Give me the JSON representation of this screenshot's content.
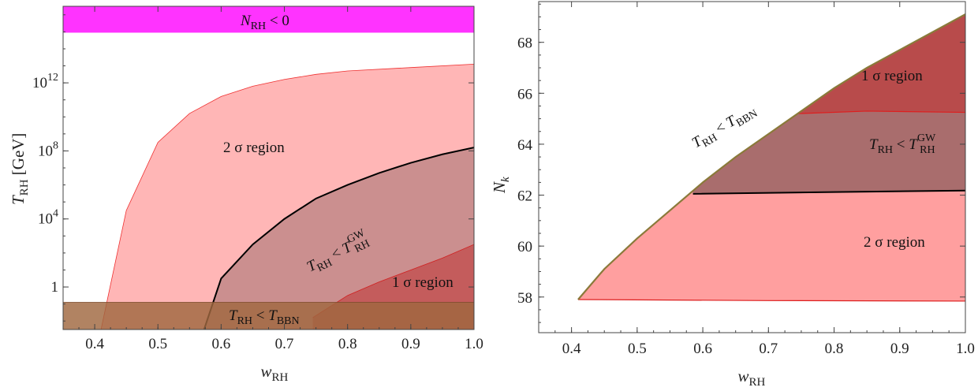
{
  "colors": {
    "two_sigma": "#ff9a9a",
    "one_sigma": "#b84a4a",
    "gw": "#a46a6a",
    "bbn": "#a0683f",
    "magenta": "#ff33ff"
  },
  "chart_data": [
    {
      "type": "area",
      "scale": "log-y",
      "xlabel": "w",
      "xlabel_sub": "RH",
      "ylabel": "T",
      "ylabel_sub": "RH",
      "ylabel_unit": "[GeV]",
      "xlim": [
        0.35,
        1.0
      ],
      "ylim_log10": [
        -2.5,
        16.5
      ],
      "x_ticks": [
        "0.4",
        "0.5",
        "0.6",
        "0.7",
        "0.8",
        "0.9",
        "1.0"
      ],
      "x_tick_values": [
        0.4,
        0.5,
        0.6,
        0.7,
        0.8,
        0.9,
        1.0
      ],
      "y_ticks": [
        {
          "value_log10": 0,
          "base": "1",
          "exp": ""
        },
        {
          "value_log10": 4,
          "base": "10",
          "exp": "4"
        },
        {
          "value_log10": 8,
          "base": "10",
          "exp": "8"
        },
        {
          "value_log10": 12,
          "base": "10",
          "exp": "12"
        }
      ],
      "series": [
        {
          "key": "two_sigma",
          "label": "2 σ region",
          "upper_log10": [
            [
              0.41,
              -2.5
            ],
            [
              0.45,
              4.5
            ],
            [
              0.5,
              8.5
            ],
            [
              0.55,
              10.2
            ],
            [
              0.6,
              11.2
            ],
            [
              0.65,
              11.8
            ],
            [
              0.7,
              12.2
            ],
            [
              0.75,
              12.5
            ],
            [
              0.8,
              12.7
            ],
            [
              0.9,
              12.9
            ],
            [
              1.0,
              13.1
            ]
          ]
        },
        {
          "key": "gw",
          "label_main": "T",
          "label_sub": "RH",
          "label_rel": " < T",
          "label_sup": "GW",
          "label_sub2": "RH",
          "upper_log10": [
            [
              0.573,
              -2.5
            ],
            [
              0.6,
              0.5
            ],
            [
              0.65,
              2.5
            ],
            [
              0.7,
              4.0
            ],
            [
              0.75,
              5.2
            ],
            [
              0.8,
              6.0
            ],
            [
              0.85,
              6.7
            ],
            [
              0.9,
              7.3
            ],
            [
              0.95,
              7.8
            ],
            [
              1.0,
              8.2
            ]
          ]
        },
        {
          "key": "one_sigma",
          "label": "1 σ region",
          "upper_log10": [
            [
              0.745,
              -1.8
            ],
            [
              0.8,
              -0.5
            ],
            [
              0.85,
              0.3
            ],
            [
              0.9,
              1.0
            ],
            [
              0.95,
              1.7
            ],
            [
              1.0,
              2.5
            ]
          ]
        }
      ],
      "bands": [
        {
          "key": "magenta",
          "label_main": "N",
          "label_sub": "RH",
          "label_rel": " < 0",
          "range_log10": [
            14.95,
            16.5
          ]
        },
        {
          "key": "bbn",
          "label_main": "T",
          "label_sub": "RH",
          "label_rel": " < T",
          "label_sub2": "BBN",
          "range_log10": [
            -2.5,
            -0.9
          ]
        }
      ]
    },
    {
      "type": "area",
      "xlabel": "w",
      "xlabel_sub": "RH",
      "ylabel": "N",
      "ylabel_sub": "k",
      "xlim": [
        0.35,
        1.0
      ],
      "ylim": [
        56.6,
        69.6
      ],
      "x_ticks": [
        "0.4",
        "0.5",
        "0.6",
        "0.7",
        "0.8",
        "0.9",
        "1.0"
      ],
      "x_tick_values": [
        0.4,
        0.5,
        0.6,
        0.7,
        0.8,
        0.9,
        1.0
      ],
      "y_ticks": [
        "58",
        "60",
        "62",
        "64",
        "66",
        "68"
      ],
      "y_tick_values": [
        58,
        60,
        62,
        64,
        66,
        68
      ],
      "upper_boundary": [
        [
          0.41,
          57.9
        ],
        [
          0.45,
          59.1
        ],
        [
          0.5,
          60.3
        ],
        [
          0.55,
          61.4
        ],
        [
          0.6,
          62.5
        ],
        [
          0.65,
          63.5
        ],
        [
          0.7,
          64.4
        ],
        [
          0.75,
          65.3
        ],
        [
          0.8,
          66.2
        ],
        [
          0.85,
          67.0
        ],
        [
          0.9,
          67.7
        ],
        [
          0.95,
          68.4
        ],
        [
          1.0,
          69.1
        ]
      ],
      "two_sigma_lower": [
        [
          0.41,
          57.9
        ],
        [
          0.7,
          57.86
        ],
        [
          1.0,
          57.84
        ]
      ],
      "gw_lower": [
        [
          0.585,
          62.05
        ],
        [
          0.8,
          62.12
        ],
        [
          1.0,
          62.18
        ]
      ],
      "one_sigma_lower": [
        [
          0.745,
          65.2
        ],
        [
          0.85,
          65.3
        ],
        [
          1.0,
          65.25
        ]
      ],
      "labels": {
        "two_sigma": "2 σ region",
        "one_sigma": "1 σ region",
        "gw": {
          "main": "T",
          "sub": "RH",
          "rel": " < T",
          "sup": "GW",
          "sub2": "RH"
        },
        "bbn": {
          "main": "T",
          "sub": "RH",
          "rel": " < T",
          "sub2": "BBN"
        }
      }
    }
  ]
}
